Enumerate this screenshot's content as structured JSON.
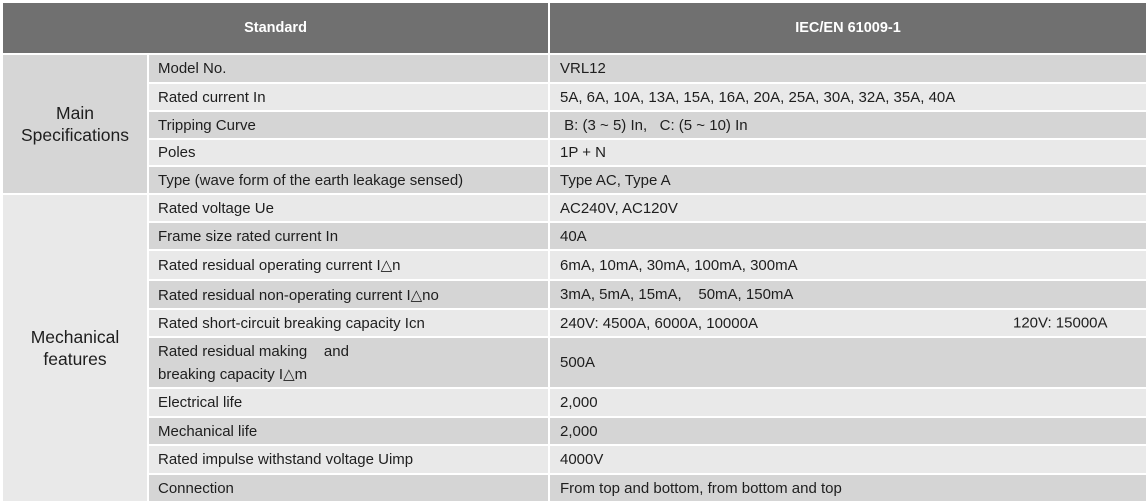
{
  "header": {
    "standard_label": "Standard",
    "standard_value": "IEC/EN 61009-1"
  },
  "groups": {
    "main": "Main Specifications",
    "mechanical": "Mechanical features"
  },
  "main_rows": [
    {
      "label": "Model No.",
      "value": "VRL12"
    },
    {
      "label": "Rated current In",
      "value": "5A, 6A, 10A, 13A, 15A, 16A, 20A, 25A, 30A, 32A, 35A, 40A"
    },
    {
      "label": "Tripping Curve",
      "value": " B: (3 ~ 5) In,   C: (5 ~ 10) In"
    },
    {
      "label": "Poles",
      "value": "1P + N"
    },
    {
      "label": "Type (wave form of the earth leakage sensed)",
      "value": "Type AC, Type A"
    }
  ],
  "mech_rows": [
    {
      "label": "Rated voltage Ue",
      "value": "AC240V, AC120V"
    },
    {
      "label": "Frame size rated current In",
      "value": "40A"
    },
    {
      "label": "Rated residual operating current I△n",
      "value": "6mA, 10mA, 30mA, 100mA, 300mA"
    },
    {
      "label": "Rated residual non-operating current I△no",
      "value": "3mA, 5mA, 15mA,    50mA, 150mA"
    },
    {
      "label": "Rated short-circuit breaking capacity Icn",
      "value": "240V: 4500A, 6000A, 10000A",
      "value2": "120V: 15000A"
    },
    {
      "label_line1": "Rated residual making    and",
      "label_line2": "breaking capacity I△m",
      "value": "500A"
    },
    {
      "label": "Electrical life",
      "value": "2,000"
    },
    {
      "label": "Mechanical life",
      "value": "2,000"
    },
    {
      "label": "Rated impulse withstand voltage Uimp",
      "value": "4000V"
    },
    {
      "label": "Connection",
      "value": "From top and bottom, from bottom and top"
    }
  ]
}
